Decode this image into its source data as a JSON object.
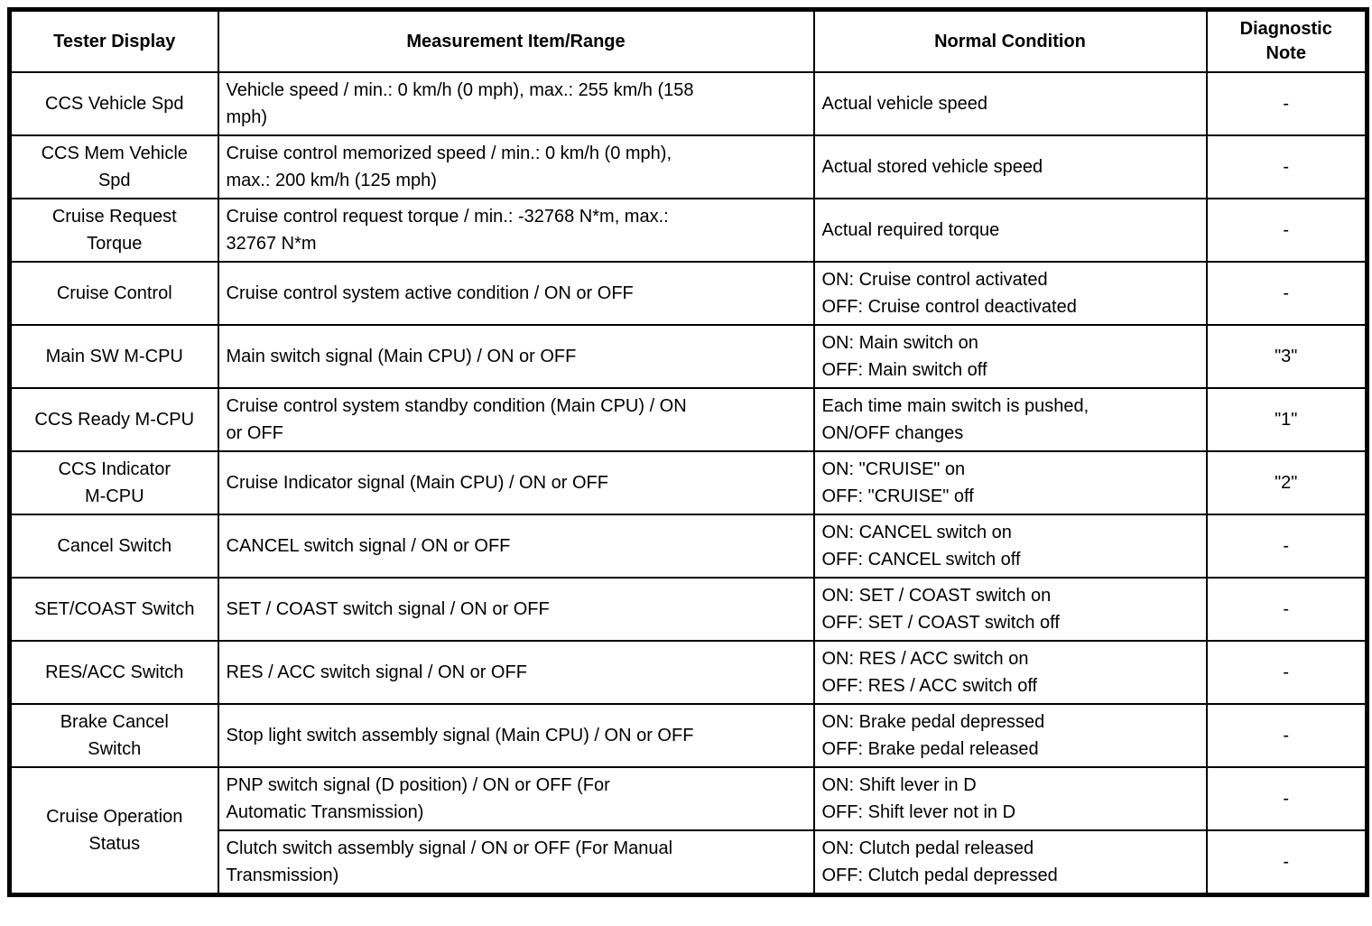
{
  "table": {
    "headers": {
      "tester_display": "Tester Display",
      "measurement": "Measurement Item/Range",
      "normal_condition": "Normal Condition",
      "diagnostic_note": "Diagnostic Note"
    },
    "rows": [
      {
        "tester": "CCS Vehicle Spd",
        "measurement": "Vehicle speed / min.: 0 km/h (0 mph), max.: 255 km/h (158\nmph)",
        "condition": "Actual vehicle speed",
        "note": "-"
      },
      {
        "tester": "CCS Mem Vehicle\nSpd",
        "measurement": "Cruise control memorized speed / min.: 0 km/h (0 mph),\nmax.: 200 km/h (125 mph)",
        "condition": "Actual stored vehicle speed",
        "note": "-"
      },
      {
        "tester": "Cruise Request\nTorque",
        "measurement": "Cruise control request torque / min.: -32768 N*m, max.:\n32767 N*m",
        "condition": "Actual required torque",
        "note": "-"
      },
      {
        "tester": "Cruise Control",
        "measurement": "Cruise control system active condition / ON or OFF",
        "condition": "ON: Cruise control activated\nOFF: Cruise control deactivated",
        "note": "-"
      },
      {
        "tester": "Main SW M-CPU",
        "measurement": "Main switch signal (Main CPU) / ON or OFF",
        "condition": "ON: Main switch on\nOFF: Main switch off",
        "note": "\"3\""
      },
      {
        "tester": "CCS Ready M-CPU",
        "measurement": "Cruise control system standby condition (Main CPU) / ON\nor OFF",
        "condition": "Each time main switch is pushed,\nON/OFF changes",
        "note": "\"1\""
      },
      {
        "tester": "CCS Indicator\nM-CPU",
        "measurement": "Cruise Indicator signal (Main CPU) / ON or OFF",
        "condition": "ON: \"CRUISE\" on\nOFF: \"CRUISE\" off",
        "note": "\"2\""
      },
      {
        "tester": "Cancel Switch",
        "measurement": "CANCEL switch signal / ON or OFF",
        "condition": "ON: CANCEL switch on\nOFF: CANCEL switch off",
        "note": "-"
      },
      {
        "tester": "SET/COAST Switch",
        "measurement": "SET / COAST switch signal / ON or OFF",
        "condition": "ON: SET / COAST switch on\nOFF: SET / COAST switch off",
        "note": "-"
      },
      {
        "tester": "RES/ACC Switch",
        "measurement": "RES / ACC switch signal / ON or OFF",
        "condition": "ON: RES / ACC switch on\nOFF: RES / ACC switch off",
        "note": "-"
      },
      {
        "tester": "Brake Cancel\nSwitch",
        "measurement": "Stop light switch assembly signal (Main CPU) / ON or OFF",
        "condition": "ON: Brake pedal depressed\nOFF: Brake pedal released",
        "note": "-"
      },
      {
        "tester": "Cruise Operation\nStatus",
        "measurement": "PNP switch signal (D position) / ON or OFF (For\nAutomatic Transmission)",
        "condition": "ON: Shift lever in D\nOFF: Shift lever not in D",
        "note": "-"
      },
      {
        "measurement": "Clutch switch assembly signal / ON or OFF (For Manual\nTransmission)",
        "condition": "ON: Clutch pedal released\nOFF: Clutch pedal depressed",
        "note": "-"
      }
    ]
  }
}
